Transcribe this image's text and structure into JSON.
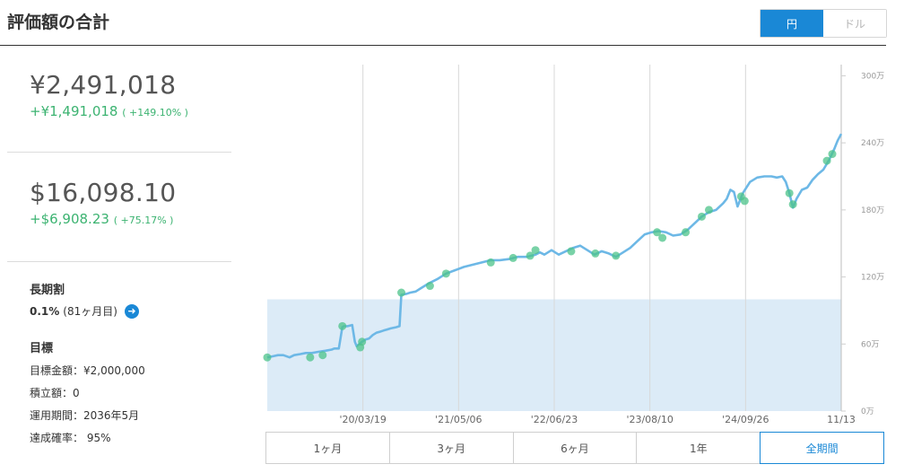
{
  "header": {
    "title": "評価額の合計",
    "currency_yen": "円",
    "currency_usd": "ドル"
  },
  "summary": {
    "yen_total": "¥2,491,018",
    "yen_gain": "+¥1,491,018",
    "yen_gain_pct": "( +149.10% )",
    "usd_total": "$16,098.10",
    "usd_gain": "+$6,908.23",
    "usd_gain_pct": "( +75.17% )"
  },
  "discount": {
    "label": "長期割",
    "value": "0.1%",
    "note": "(81ヶ月目)"
  },
  "goal": {
    "label": "目標",
    "target_amount": "目標金額：¥2,000,000",
    "deposit": "積立額：0",
    "period": "運用期間：2036年5月",
    "probability": "達成確率： 95%"
  },
  "range_tabs": [
    "1ヶ月",
    "3ヶ月",
    "6ヶ月",
    "1年",
    "全期間"
  ],
  "colors": {
    "accent": "#1a88d6",
    "gain": "#3cb371",
    "line": "#6db8e6",
    "area": "#dcebf7",
    "marker": "#4cc38a"
  },
  "chart_data": {
    "type": "line",
    "x_labels": [
      "'20/03/19",
      "'21/05/06",
      "'22/06/23",
      "'23/08/10",
      "'24/09/26",
      "11/13"
    ],
    "y_ticks": [
      "0万",
      "60万",
      "120万",
      "180万",
      "240万",
      "300万"
    ],
    "ylim": [
      0,
      310
    ],
    "series": [
      {
        "values": [
          [
            0,
            48
          ],
          [
            6,
            49
          ],
          [
            12,
            50
          ],
          [
            18,
            50
          ],
          [
            25,
            48
          ],
          [
            30,
            50
          ],
          [
            37,
            51
          ],
          [
            43,
            52
          ],
          [
            50,
            52
          ],
          [
            57,
            53
          ],
          [
            65,
            54
          ],
          [
            72,
            55
          ],
          [
            75,
            56
          ],
          [
            80,
            56
          ],
          [
            84,
            75
          ],
          [
            86,
            76
          ],
          [
            90,
            76
          ],
          [
            95,
            77
          ],
          [
            98,
            62
          ],
          [
            100,
            58
          ],
          [
            103,
            60
          ],
          [
            106,
            62
          ],
          [
            110,
            64
          ],
          [
            114,
            65
          ],
          [
            118,
            68
          ],
          [
            122,
            70
          ],
          [
            126,
            71
          ],
          [
            130,
            72
          ],
          [
            134,
            73
          ],
          [
            138,
            74
          ],
          [
            144,
            75
          ],
          [
            148,
            76
          ],
          [
            150,
            104
          ],
          [
            156,
            105
          ],
          [
            160,
            106
          ],
          [
            166,
            107
          ],
          [
            172,
            110
          ],
          [
            180,
            114
          ],
          [
            190,
            118
          ],
          [
            200,
            123
          ],
          [
            210,
            126
          ],
          [
            220,
            129
          ],
          [
            230,
            131
          ],
          [
            240,
            133
          ],
          [
            250,
            135
          ],
          [
            260,
            135
          ],
          [
            270,
            136
          ],
          [
            280,
            138
          ],
          [
            290,
            138
          ],
          [
            300,
            140
          ],
          [
            305,
            142
          ],
          [
            310,
            140
          ],
          [
            318,
            144
          ],
          [
            326,
            140
          ],
          [
            334,
            143
          ],
          [
            342,
            146
          ],
          [
            350,
            148
          ],
          [
            358,
            144
          ],
          [
            366,
            140
          ],
          [
            374,
            143
          ],
          [
            382,
            141
          ],
          [
            390,
            138
          ],
          [
            398,
            142
          ],
          [
            406,
            146
          ],
          [
            414,
            152
          ],
          [
            422,
            158
          ],
          [
            430,
            160
          ],
          [
            438,
            161
          ],
          [
            446,
            160
          ],
          [
            454,
            157
          ],
          [
            462,
            158
          ],
          [
            470,
            162
          ],
          [
            478,
            168
          ],
          [
            486,
            174
          ],
          [
            494,
            178
          ],
          [
            502,
            180
          ],
          [
            510,
            186
          ],
          [
            514,
            190
          ],
          [
            518,
            198
          ],
          [
            522,
            196
          ],
          [
            526,
            183
          ],
          [
            532,
            195
          ],
          [
            540,
            205
          ],
          [
            548,
            209
          ],
          [
            556,
            210
          ],
          [
            564,
            210
          ],
          [
            570,
            209
          ],
          [
            576,
            210
          ],
          [
            580,
            205
          ],
          [
            584,
            195
          ],
          [
            588,
            182
          ],
          [
            592,
            190
          ],
          [
            598,
            198
          ],
          [
            604,
            200
          ],
          [
            610,
            207
          ],
          [
            616,
            212
          ],
          [
            622,
            216
          ],
          [
            628,
            224
          ],
          [
            634,
            234
          ],
          [
            638,
            242
          ],
          [
            642,
            248
          ]
        ]
      }
    ],
    "markers": [
      [
        0,
        48
      ],
      [
        48,
        48
      ],
      [
        62,
        50
      ],
      [
        84,
        76
      ],
      [
        104,
        57
      ],
      [
        106,
        62
      ],
      [
        150,
        106
      ],
      [
        182,
        112
      ],
      [
        200,
        123
      ],
      [
        250,
        133
      ],
      [
        275,
        137
      ],
      [
        294,
        139
      ],
      [
        300,
        144
      ],
      [
        340,
        143
      ],
      [
        367,
        141
      ],
      [
        390,
        139
      ],
      [
        436,
        160
      ],
      [
        442,
        155
      ],
      [
        468,
        160
      ],
      [
        486,
        174
      ],
      [
        494,
        180
      ],
      [
        530,
        192
      ],
      [
        534,
        188
      ],
      [
        584,
        195
      ],
      [
        588,
        185
      ],
      [
        626,
        224
      ],
      [
        632,
        230
      ]
    ],
    "goal_value": 100,
    "grid": true
  }
}
